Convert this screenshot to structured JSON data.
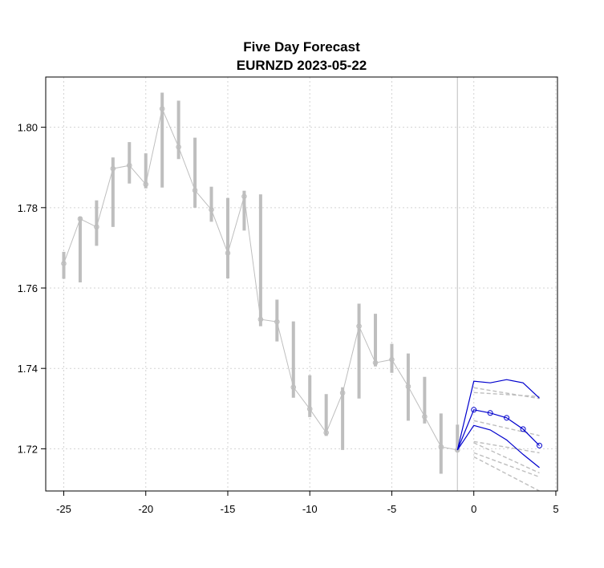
{
  "chart_data": {
    "type": "line",
    "title": "Five Day Forecast",
    "subtitle": "EURNZD 2023-05-22",
    "xlabel": "",
    "ylabel": "",
    "xlim": [
      -26.1,
      5.1
    ],
    "ylim": [
      1.7095,
      1.8125
    ],
    "xticks": [
      "-25",
      "-20",
      "-15",
      "-10",
      "-5",
      "0",
      "5"
    ],
    "xtick_values": [
      -25,
      -20,
      -15,
      -10,
      -5,
      0,
      5
    ],
    "yticks": [
      "1.72",
      "1.74",
      "1.76",
      "1.78",
      "1.80"
    ],
    "ytick_values": [
      1.72,
      1.74,
      1.76,
      1.78,
      1.8
    ],
    "grid": true,
    "vline_x": -1,
    "colors": {
      "history": "#bebebe",
      "forecast": "#0000cd",
      "band": "#bebebe",
      "grid": "#d3d3d3"
    },
    "history": {
      "x": [
        -25,
        -24,
        -23,
        -22,
        -21,
        -20,
        -19,
        -18,
        -17,
        -16,
        -15,
        -14,
        -13,
        -12,
        -11,
        -10,
        -9,
        -8,
        -7,
        -6,
        -5,
        -4,
        -3,
        -2,
        -1
      ],
      "close": [
        1.7661,
        1.7772,
        1.7752,
        1.7897,
        1.7905,
        1.7858,
        1.8046,
        1.7951,
        1.7843,
        1.7795,
        1.7687,
        1.7828,
        1.7522,
        1.7516,
        1.7353,
        1.7299,
        1.724,
        1.7339,
        1.7505,
        1.7414,
        1.7422,
        1.7355,
        1.728,
        1.7205,
        1.7197
      ],
      "low": [
        1.7623,
        1.7614,
        1.7705,
        1.7752,
        1.786,
        1.7848,
        1.785,
        1.7921,
        1.78,
        1.7765,
        1.7624,
        1.7743,
        1.7505,
        1.7467,
        1.7327,
        1.7279,
        1.7232,
        1.7197,
        1.7325,
        1.7405,
        1.7389,
        1.727,
        1.7263,
        1.7138,
        1.7193
      ],
      "high": [
        1.769,
        1.7778,
        1.7818,
        1.7925,
        1.7963,
        1.7935,
        1.8086,
        1.8066,
        1.7974,
        1.7852,
        1.7824,
        1.7842,
        1.7833,
        1.7571,
        1.7517,
        1.7383,
        1.7336,
        1.7353,
        1.7561,
        1.7536,
        1.7461,
        1.7437,
        1.7379,
        1.7288,
        1.726
      ]
    },
    "forecast": {
      "x": [
        -1,
        0,
        1,
        2,
        3,
        4
      ],
      "mean": [
        1.7197,
        1.7297,
        1.7289,
        1.7277,
        1.7249,
        1.7208
      ],
      "upper": [
        1.7197,
        1.7368,
        1.7364,
        1.7372,
        1.7364,
        1.7326
      ],
      "lower": [
        1.7197,
        1.7258,
        1.7247,
        1.7222,
        1.7186,
        1.7153
      ]
    },
    "bands": [
      {
        "x": [
          0,
          4
        ],
        "y": [
          1.7352,
          1.7325
        ]
      },
      {
        "x": [
          0,
          4
        ],
        "y": [
          1.734,
          1.733
        ]
      },
      {
        "x": [
          0,
          4
        ],
        "y": [
          1.727,
          1.7233
        ]
      },
      {
        "x": [
          0,
          4
        ],
        "y": [
          1.7218,
          1.719
        ]
      },
      {
        "x": [
          0,
          4
        ],
        "y": [
          1.7215,
          1.714
        ]
      },
      {
        "x": [
          0,
          4
        ],
        "y": [
          1.719,
          1.713
        ]
      },
      {
        "x": [
          0,
          4
        ],
        "y": [
          1.718,
          1.7095
        ]
      }
    ]
  }
}
